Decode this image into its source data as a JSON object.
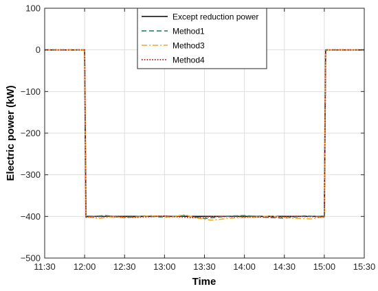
{
  "chart_data": {
    "type": "line",
    "xlabel": "Time",
    "ylabel": "Electric power (kW)",
    "xlim": [
      "11:30",
      "15:30"
    ],
    "ylim": [
      -500,
      100
    ],
    "x_ticks": [
      "11:30",
      "12:00",
      "12:30",
      "13:00",
      "13:30",
      "14:00",
      "14:30",
      "15:00",
      "15:30"
    ],
    "y_ticks": [
      100,
      0,
      -100,
      -200,
      -300,
      -400,
      -500
    ],
    "grid": true,
    "legend": "top-center",
    "series": [
      {
        "name": "Except reduction power",
        "color": "#000000",
        "style": "solid",
        "x": [
          "11:30",
          "12:00",
          "12:01",
          "15:00",
          "15:01",
          "15:30"
        ],
        "y": [
          0,
          0,
          -400,
          -400,
          0,
          0
        ]
      },
      {
        "name": "Method1",
        "color": "#2e8b74",
        "style": "dashed",
        "x": [
          "11:30",
          "12:00",
          "12:01",
          "12:15",
          "12:30",
          "12:45",
          "13:00",
          "13:15",
          "13:30",
          "13:45",
          "14:00",
          "14:15",
          "14:30",
          "14:45",
          "15:00",
          "15:01",
          "15:30"
        ],
        "y": [
          0,
          0,
          -402,
          -398,
          -403,
          -399,
          -402,
          -398,
          -405,
          -400,
          -398,
          -402,
          -404,
          -399,
          -401,
          0,
          0
        ]
      },
      {
        "name": "Method3",
        "color": "#f5a623",
        "style": "dashdot",
        "x": [
          "11:30",
          "12:00",
          "12:01",
          "12:10",
          "12:20",
          "12:35",
          "12:50",
          "13:05",
          "13:15",
          "13:25",
          "13:35",
          "13:50",
          "14:05",
          "14:20",
          "14:35",
          "14:50",
          "15:00",
          "15:01",
          "15:30"
        ],
        "y": [
          0,
          0,
          -400,
          -405,
          -401,
          -403,
          -398,
          -402,
          -396,
          -404,
          -409,
          -404,
          -402,
          -399,
          -404,
          -406,
          -401,
          0,
          0
        ]
      },
      {
        "name": "Method4",
        "color": "#c62828",
        "style": "dotted",
        "x": [
          "11:30",
          "12:00",
          "12:01",
          "12:20",
          "12:40",
          "13:00",
          "13:20",
          "13:40",
          "14:00",
          "14:20",
          "14:40",
          "15:00",
          "15:01",
          "15:30"
        ],
        "y": [
          0,
          0,
          -401,
          -400,
          -402,
          -399,
          -403,
          -400,
          -401,
          -402,
          -400,
          -401,
          0,
          0
        ]
      }
    ]
  }
}
